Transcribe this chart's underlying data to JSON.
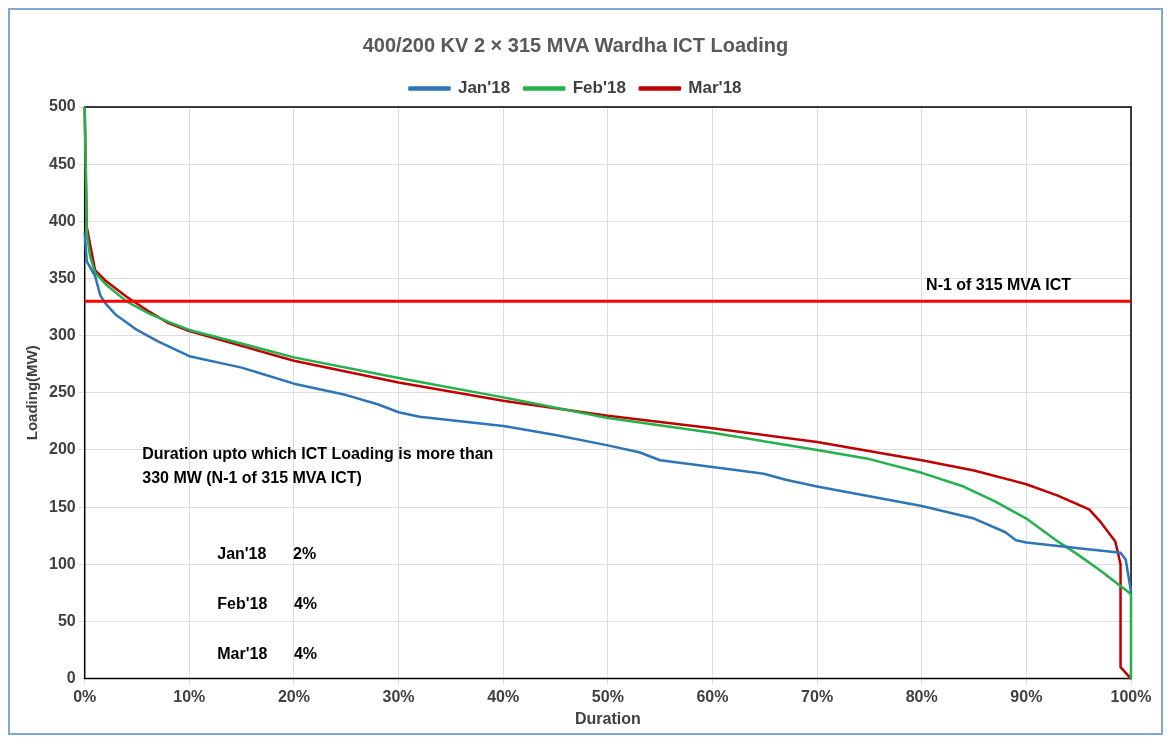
{
  "chart_data": {
    "type": "line",
    "title": "400/200 KV 2 × 315 MVA Wardha ICT Loading",
    "xlabel": "Duration",
    "ylabel": "Loading(MW)",
    "xlim": [
      0,
      100
    ],
    "xticks": [
      {
        "value": 0,
        "label": "0%"
      },
      {
        "value": 10,
        "label": "10%"
      },
      {
        "value": 20,
        "label": "20%"
      },
      {
        "value": 30,
        "label": "30%"
      },
      {
        "value": 40,
        "label": "40%"
      },
      {
        "value": 50,
        "label": "50%"
      },
      {
        "value": 60,
        "label": "60%"
      },
      {
        "value": 70,
        "label": "70%"
      },
      {
        "value": 80,
        "label": "80%"
      },
      {
        "value": 90,
        "label": "90%"
      },
      {
        "value": 100,
        "label": "100%"
      }
    ],
    "ylim": [
      0,
      500
    ],
    "yticks": [
      0,
      50,
      100,
      150,
      200,
      250,
      300,
      350,
      400,
      450,
      500
    ],
    "grid": true,
    "legend": "top",
    "marker": "none",
    "line_style": "solid",
    "series": [
      {
        "name": "Jan'18",
        "color": "#2e75b6",
        "x": [
          0,
          0.2,
          1,
          1.5,
          2,
          3,
          5,
          7,
          10,
          15,
          20,
          25,
          28,
          30,
          32,
          40,
          45,
          50,
          53,
          55,
          60,
          65,
          67,
          70,
          80,
          85,
          88,
          89,
          90,
          95,
          99,
          99.5,
          100
        ],
        "values": [
          390,
          365,
          352,
          335,
          328,
          318,
          305,
          295,
          282,
          272,
          258,
          248,
          240,
          233,
          229,
          221,
          213,
          204,
          198,
          191,
          185,
          179,
          174,
          168,
          151,
          140,
          128,
          121,
          119,
          114,
          110,
          104,
          76
        ]
      },
      {
        "name": "Feb'18",
        "color": "#22b14c",
        "x": [
          0,
          0.2,
          0.5,
          1,
          2,
          4,
          6,
          8,
          10,
          20,
          30,
          40,
          50,
          60,
          70,
          75,
          80,
          84,
          87,
          90,
          93,
          95,
          97,
          100,
          100
        ],
        "values": [
          500,
          390,
          370,
          355,
          345,
          330,
          320,
          312,
          305,
          281,
          263,
          246,
          228,
          215,
          200,
          192,
          180,
          168,
          155,
          140,
          120,
          108,
          95,
          74,
          0
        ]
      },
      {
        "name": "Mar'18",
        "color": "#c00000",
        "x": [
          0,
          0.2,
          1,
          2,
          4,
          6,
          8,
          10,
          20,
          30,
          40,
          50,
          60,
          70,
          80,
          85,
          90,
          93,
          96,
          97,
          98.5,
          99,
          99,
          100
        ],
        "values": [
          500,
          395,
          357,
          348,
          334,
          322,
          311,
          304,
          278,
          259,
          243,
          230,
          219,
          207,
          191,
          182,
          170,
          160,
          148,
          138,
          120,
          100,
          10,
          0
        ]
      }
    ],
    "ref_lines": [
      {
        "axis": "y",
        "value": 330,
        "label": "N-1 of 315 MVA ICT",
        "color": "#ff0000"
      }
    ],
    "annotations": [
      "Duration upto which ICT Loading is more than 330 MW (N-1 of 315 MVA ICT)",
      "Jan'18      2%",
      "Feb'18      4%",
      "Mar'18      4%"
    ]
  }
}
